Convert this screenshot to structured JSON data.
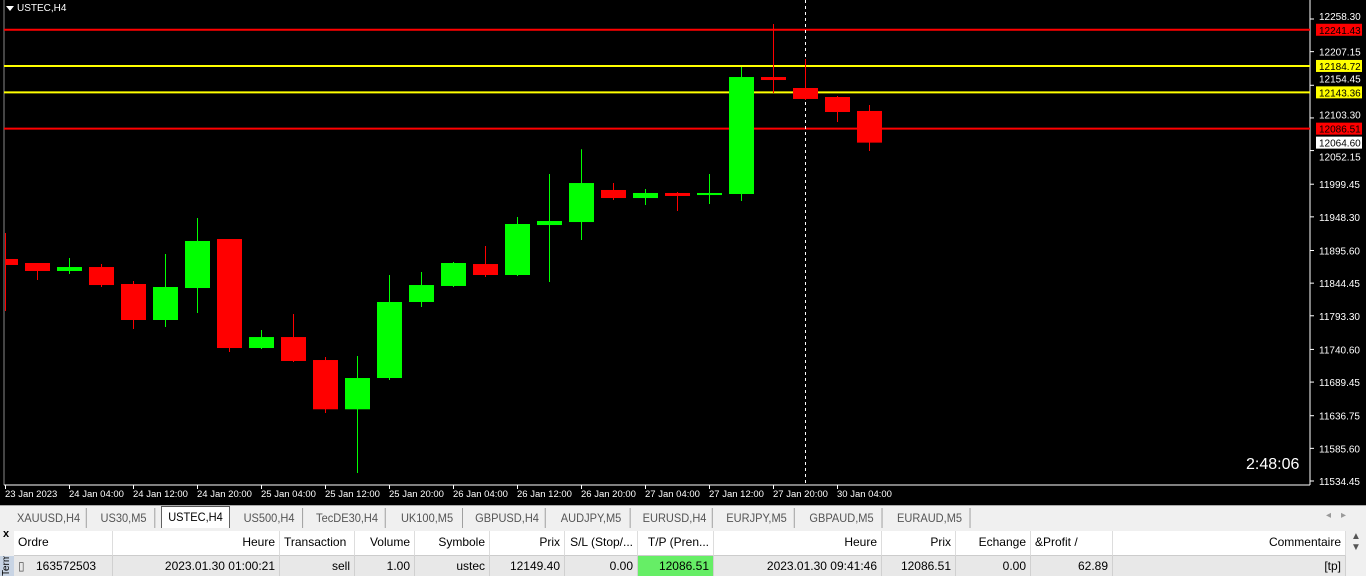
{
  "chart": {
    "symbol": "USTEC,H4",
    "timer": "2:48:06",
    "colors": {
      "bull": "#00ff00",
      "bear": "#ff0000",
      "background": "#000000",
      "axis": "#ffffff"
    },
    "price_axis_labels": [
      "12258.30",
      "12207.15",
      "12154.45",
      "12103.30",
      "12052.15",
      "11999.45",
      "11948.30",
      "11895.60",
      "11844.45",
      "11793.30",
      "11740.60",
      "11689.45",
      "11636.75",
      "11585.60",
      "11534.45"
    ],
    "time_axis_labels": [
      "23 Jan 2023",
      "24 Jan 04:00",
      "24 Jan 12:00",
      "24 Jan 20:00",
      "25 Jan 04:00",
      "25 Jan 12:00",
      "25 Jan 20:00",
      "26 Jan 04:00",
      "26 Jan 12:00",
      "26 Jan 20:00",
      "27 Jan 04:00",
      "27 Jan 12:00",
      "27 Jan 20:00",
      "30 Jan 04:00"
    ],
    "levels": [
      {
        "price": 12241.43,
        "label": "12241.43",
        "color": "#ff0000",
        "text": "#000000"
      },
      {
        "price": 12184.72,
        "label": "12184.72",
        "color": "#ffff00",
        "text": "#000000"
      },
      {
        "price": 12143.36,
        "label": "12143.36",
        "color": "#ffff00",
        "text": "#000000"
      },
      {
        "price": 12086.51,
        "label": "12086.51",
        "color": "#ff0000",
        "text": "#000000"
      }
    ],
    "current_price": {
      "price": 12064.6,
      "label": "12064.60"
    },
    "candles": [
      [
        11882.3,
        11923.0,
        11800.8,
        11872.9
      ],
      [
        11876.0,
        11876.0,
        11849.4,
        11863.5
      ],
      [
        11863.5,
        11883.8,
        11858.8,
        11869.7
      ],
      [
        11869.7,
        11874.4,
        11838.4,
        11841.5
      ],
      [
        11843.1,
        11847.8,
        11772.6,
        11786.7
      ],
      [
        11786.7,
        11890.1,
        11775.7,
        11838.4
      ],
      [
        11836.8,
        11946.5,
        11797.6,
        11910.5
      ],
      [
        11913.6,
        11913.6,
        11736.6,
        11742.8
      ],
      [
        11742.8,
        11771.0,
        11741.3,
        11760.0
      ],
      [
        11760.0,
        11796.1,
        11720.9,
        11722.5
      ],
      [
        11724.0,
        11728.7,
        11640.9,
        11646.8
      ],
      [
        11646.8,
        11730.3,
        11547.0,
        11695.8
      ],
      [
        11695.8,
        11857.2,
        11692.7,
        11814.9
      ],
      [
        11814.9,
        11861.9,
        11807.1,
        11841.5
      ],
      [
        11840.0,
        11877.6,
        11838.4,
        11876.0
      ],
      [
        11874.4,
        11902.6,
        11854.1,
        11857.2
      ],
      [
        11857.2,
        11948.1,
        11855.6,
        11937.1
      ],
      [
        11935.5,
        12015.5,
        11846.2,
        11941.8
      ],
      [
        11940.2,
        12054.2,
        11912.0,
        12001.3
      ],
      [
        11990.4,
        12001.3,
        11974.7,
        11977.8
      ],
      [
        11977.8,
        11992.0,
        11966.9,
        11985.7
      ],
      [
        11985.7,
        11987.2,
        11957.5,
        11981.0
      ],
      [
        11982.5,
        12015.5,
        11968.4,
        11985.7
      ],
      [
        11984.1,
        12183.1,
        11973.1,
        12167.4
      ],
      [
        12167.4,
        12250.5,
        12142.4,
        12162.7
      ],
      [
        12150.2,
        12195.6,
        12131.4,
        12133.0
      ],
      [
        12136.1,
        12137.7,
        12096.9,
        12112.6
      ],
      [
        12114.2,
        12123.6,
        12051.5,
        12064.6
      ]
    ]
  },
  "tabs": [
    {
      "label": "XAUUSD,H4"
    },
    {
      "label": "US30,M5"
    },
    {
      "label": "USTEC,H4",
      "active": true
    },
    {
      "label": "US500,H4"
    },
    {
      "label": "TecDE30,H4"
    },
    {
      "label": "UK100,M5"
    },
    {
      "label": "GBPUSD,H4"
    },
    {
      "label": "AUDJPY,M5"
    },
    {
      "label": "EURUSD,H4"
    },
    {
      "label": "EURJPY,M5"
    },
    {
      "label": "GBPAUD,M5"
    },
    {
      "label": "EURAUD,M5"
    }
  ],
  "terminal": {
    "close": "x",
    "side_label": "Terminal",
    "columns": [
      "Ordre",
      "Heure",
      "Transaction",
      "Volume",
      "Symbole",
      "Prix",
      "S/L (Stop/...",
      "T/P (Pren...",
      "Heure",
      "Prix",
      "Echange",
      "&Profit  /",
      "Commentaire"
    ],
    "rows": [
      [
        "163572503",
        "2023.01.30 01:00:21",
        "sell",
        "1.00",
        "ustec",
        "12149.40",
        "0.00",
        "12086.51",
        "2023.01.30 09:41:46",
        "12086.51",
        "0.00",
        "62.89",
        "[tp]"
      ]
    ],
    "highlight_color": "#66ee66"
  }
}
